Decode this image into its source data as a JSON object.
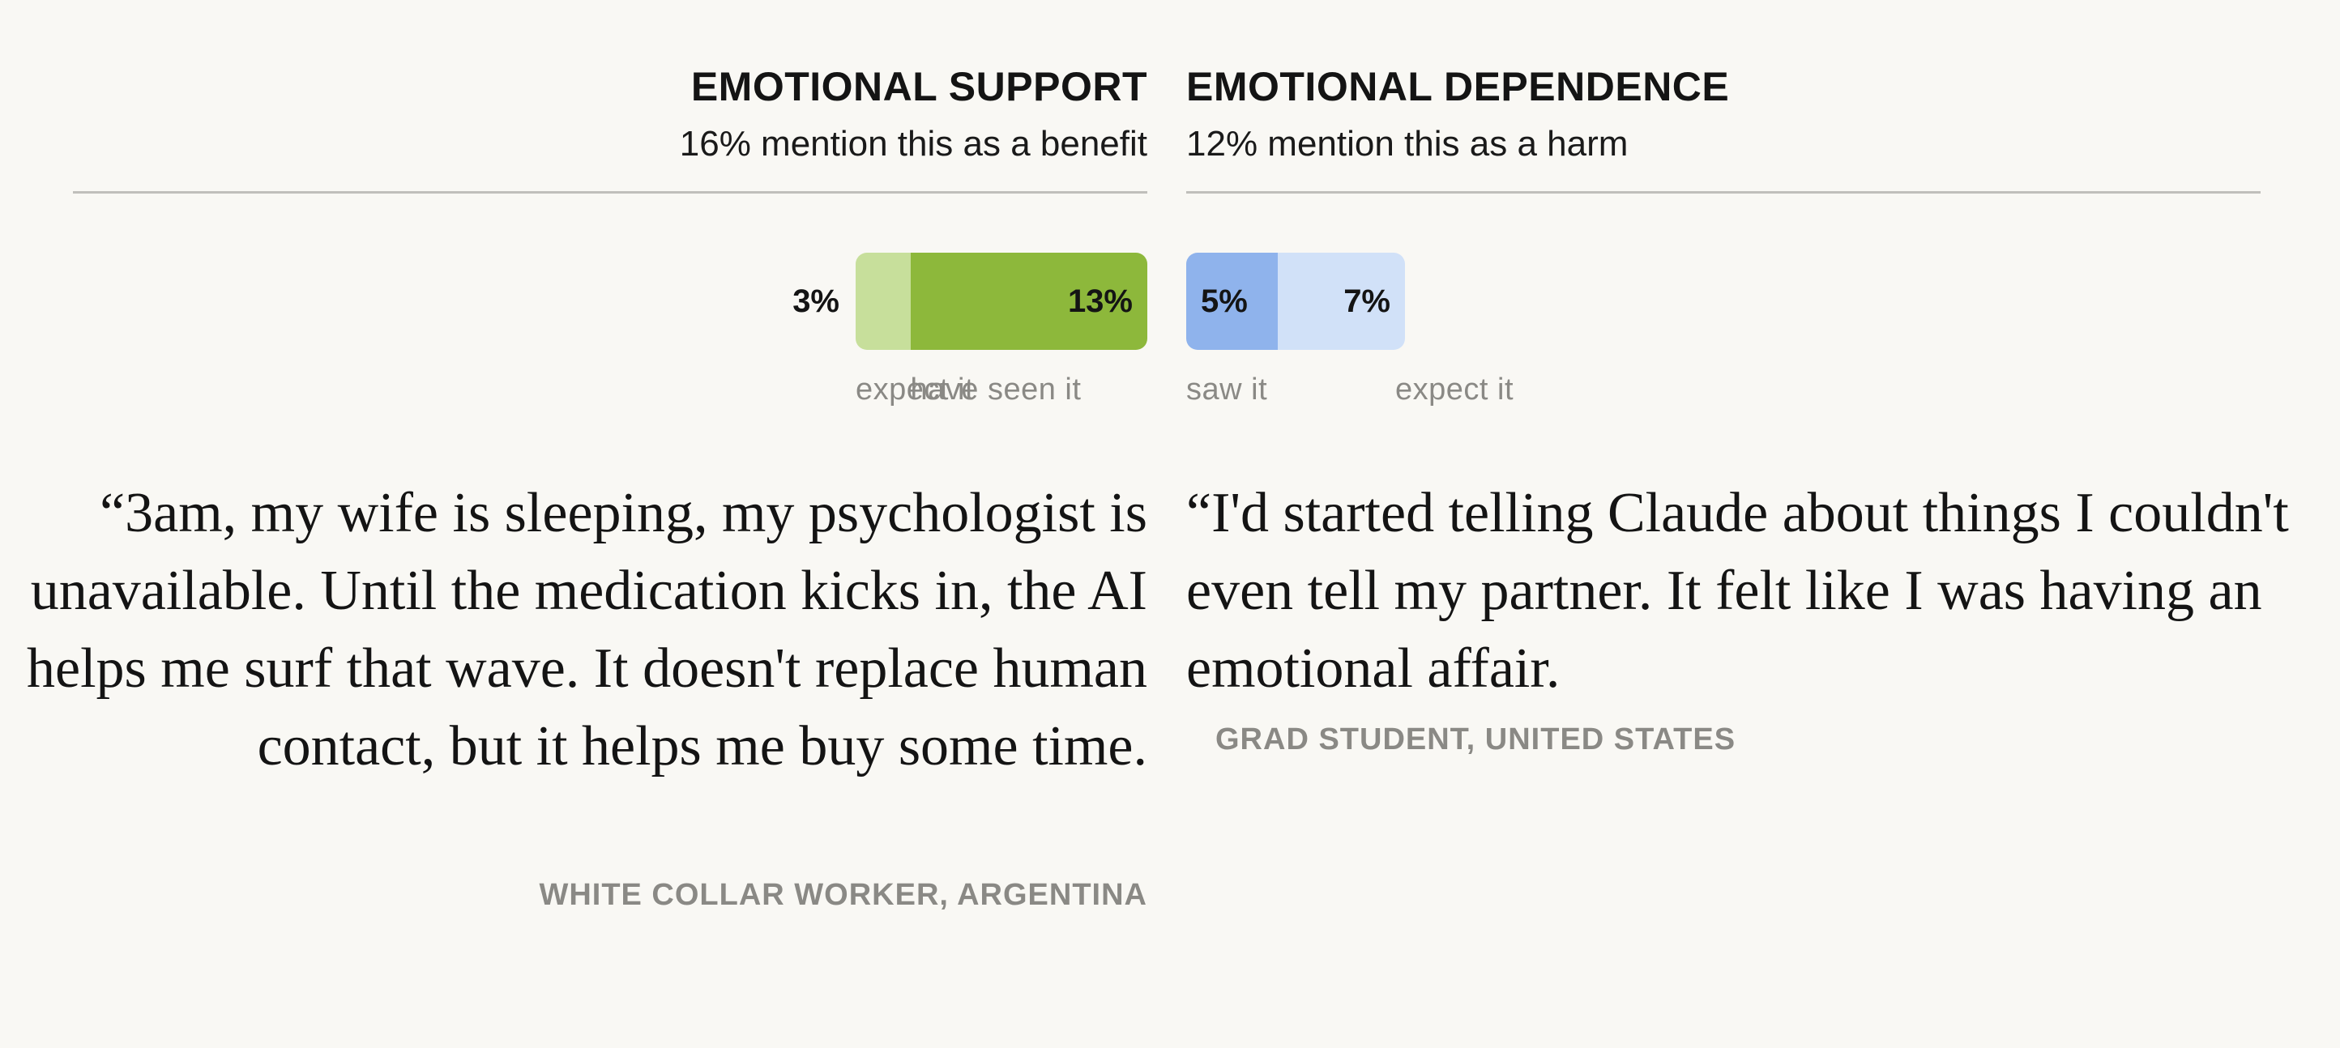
{
  "chart_data": [
    {
      "type": "bar",
      "title": "EMOTIONAL SUPPORT",
      "subtitle": "16% mention this as a benefit",
      "direction": "leftward",
      "total": 16,
      "series": [
        {
          "name": "expect it",
          "value": 3,
          "label": "3%",
          "color": "#c7df9b"
        },
        {
          "name": "have seen it",
          "value": 13,
          "label": "13%",
          "color": "#8db83b"
        }
      ],
      "quote": "“3am, my wife is sleeping, my psychologist is unavailable. Until the medication kicks in, the AI helps me surf that wave. It doesn't replace human contact, but it helps me buy some time.",
      "attribution": "WHITE COLLAR WORKER, ARGENTINA"
    },
    {
      "type": "bar",
      "title": "EMOTIONAL DEPENDENCE",
      "subtitle": "12% mention this as a harm",
      "direction": "rightward",
      "total": 12,
      "series": [
        {
          "name": "saw it",
          "value": 5,
          "label": "5%",
          "color": "#8fb3ec"
        },
        {
          "name": "expect it",
          "value": 7,
          "label": "7%",
          "color": "#d1e1f8"
        }
      ],
      "quote": "“I'd started telling Claude about things I couldn't even tell my partner. It felt like I was having an emotional affair.",
      "attribution": "GRAD STUDENT, UNITED STATES"
    }
  ],
  "colors": {
    "background": "#f9f8f4",
    "rule": "#c0bfbb",
    "muted_text": "#8a8985"
  }
}
